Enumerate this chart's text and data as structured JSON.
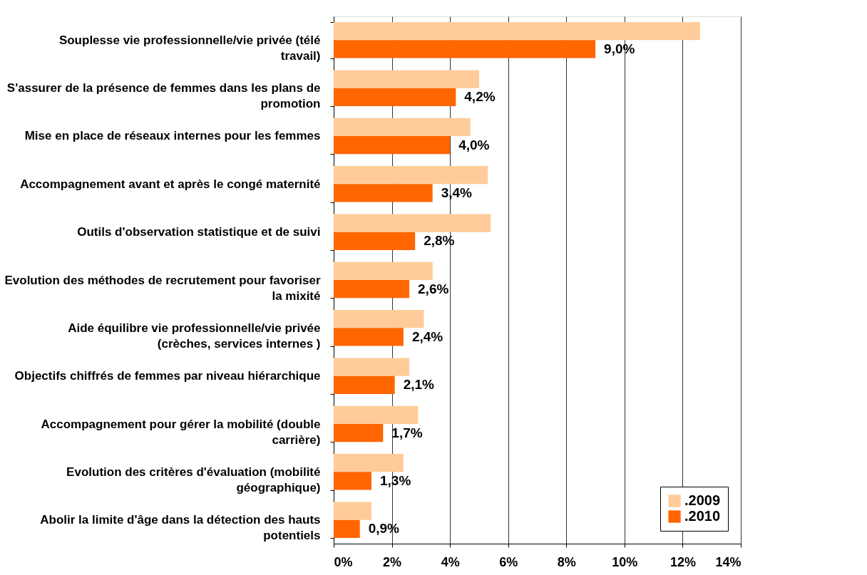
{
  "chart_data": {
    "type": "bar",
    "orientation": "horizontal",
    "categories": [
      "Souplesse vie professionnelle/vie privée (télé travail)",
      "S'assurer de la présence de femmes dans les plans de promotion",
      "Mise en place de réseaux internes pour les femmes",
      "Accompagnement avant et après le congé maternité",
      "Outils d'observation statistique et de suivi",
      "Evolution des méthodes de recrutement pour favoriser la mixité",
      "Aide équilibre vie professionnelle/vie privée (crèches, services internes )",
      "Objectifs chiffrés de femmes par niveau hiérarchique",
      "Accompagnement pour gérer la mobilité (double carrière)",
      "Evolution des critères d'évaluation (mobilité géographique)",
      "Abolir la limite d'âge dans la détection des hauts potentiels"
    ],
    "series": [
      {
        "name": ".2009",
        "color": "#ffcc99",
        "values": [
          12.6,
          5.0,
          4.7,
          5.3,
          5.4,
          3.4,
          3.1,
          2.6,
          2.9,
          2.4,
          1.3
        ]
      },
      {
        "name": ".2010",
        "color": "#ff6600",
        "values": [
          9.0,
          4.2,
          4.0,
          3.4,
          2.8,
          2.6,
          2.4,
          2.1,
          1.7,
          1.3,
          0.9
        ],
        "value_labels": [
          "9,0%",
          "4,2%",
          "4,0%",
          "3,4%",
          "2,8%",
          "2,6%",
          "2,4%",
          "2,1%",
          "1,7%",
          "1,3%",
          "0,9%"
        ]
      }
    ],
    "xlim": [
      0,
      14
    ],
    "xticks": [
      {
        "value": 0,
        "label": "0%"
      },
      {
        "value": 2,
        "label": "2%"
      },
      {
        "value": 4,
        "label": "4%"
      },
      {
        "value": 6,
        "label": "6%"
      },
      {
        "value": 8,
        "label": "8%"
      },
      {
        "value": 10,
        "label": "10%"
      },
      {
        "value": 12,
        "label": "12%"
      },
      {
        "value": 14,
        "label": "14%"
      }
    ],
    "grid": "x",
    "legend": "bottom right"
  }
}
